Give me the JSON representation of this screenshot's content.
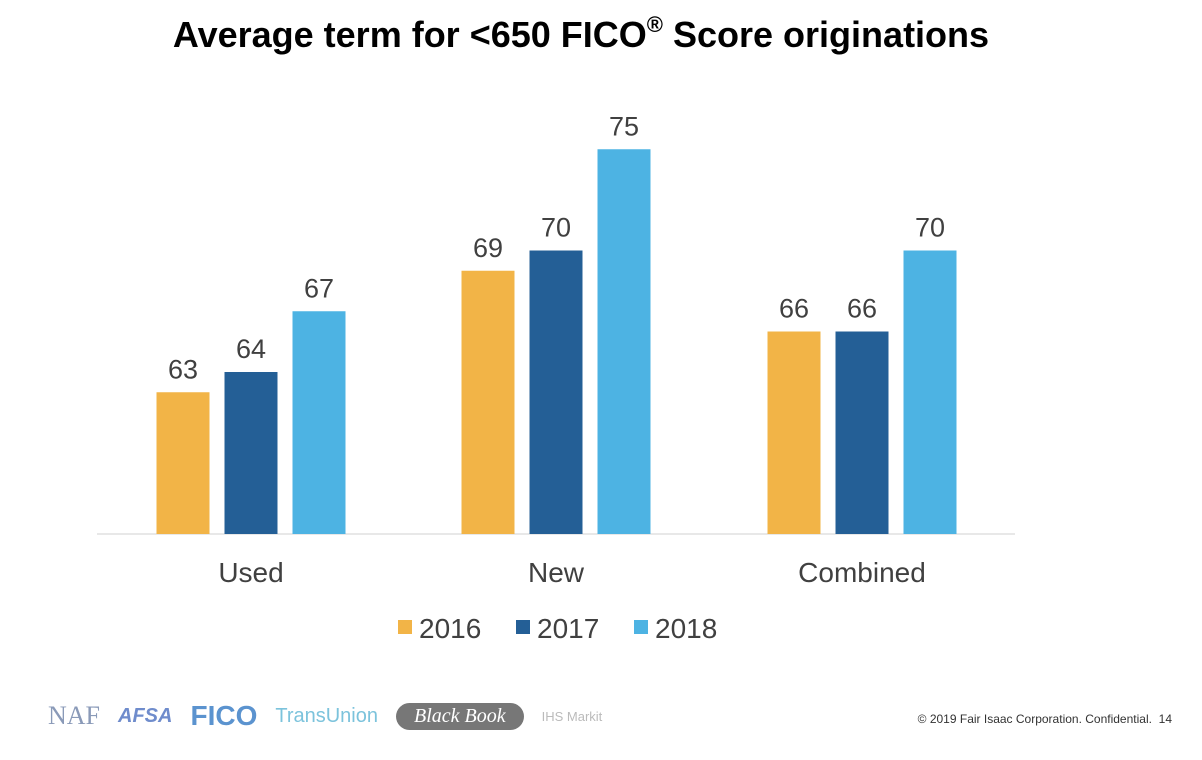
{
  "chart_data": {
    "type": "bar",
    "title": "Average term for <650 FICO",
    "title_superscript": "®",
    "title_suffix": " Score originations",
    "categories": [
      "Used",
      "New",
      "Combined"
    ],
    "series": [
      {
        "name": "2016",
        "values": [
          63,
          69,
          66
        ],
        "color": "#F2B447"
      },
      {
        "name": "2017",
        "values": [
          64,
          70,
          66
        ],
        "color": "#245F96"
      },
      {
        "name": "2018",
        "values": [
          67,
          75,
          70
        ],
        "color": "#4DB3E3"
      }
    ],
    "ylim": [
      56,
      76
    ],
    "xlabel": "",
    "ylabel": "",
    "grid": false,
    "data_labels": true,
    "legend_position": "bottom"
  },
  "logos": [
    "NAF",
    "AFSA",
    "FICO",
    "TransUnion",
    "Black Book",
    "IHS Markit"
  ],
  "footer": {
    "copyright": "© 2019 Fair Isaac Corporation. Confidential.",
    "page": "14"
  }
}
